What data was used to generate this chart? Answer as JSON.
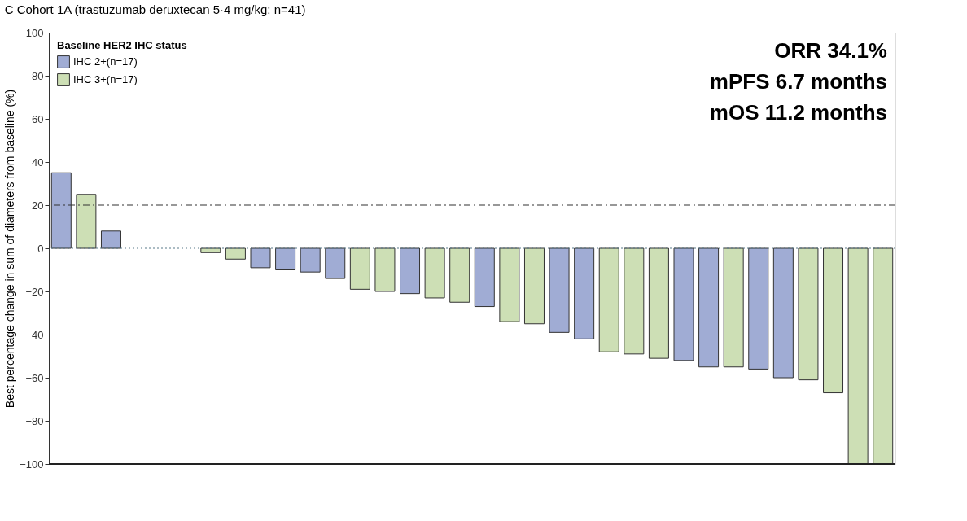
{
  "chart_data": {
    "type": "bar",
    "title": "C  Cohort 1A (trastuzumab deruxtecan 5·4 mg/kg; n=41)",
    "ylabel": "Best percentage change in sum of diameters from baseline (%)",
    "legend_title": "Baseline HER2 IHC status",
    "categories": [
      null,
      null,
      null,
      null,
      null,
      null,
      null,
      null,
      null,
      null,
      null,
      null,
      null,
      null,
      null,
      null,
      null,
      null,
      null,
      null,
      null,
      null,
      null,
      null,
      null,
      null,
      null,
      null,
      null,
      null,
      null,
      null,
      null,
      null
    ],
    "series": [
      {
        "name": "IHC 2+(n=17)",
        "color": "#a0acd4",
        "values": [
          35,
          null,
          8,
          null,
          null,
          null,
          null,
          null,
          -9,
          -10,
          -11,
          -14,
          null,
          null,
          -21,
          null,
          null,
          -27,
          null,
          null,
          -39,
          -42,
          null,
          null,
          null,
          -52,
          -55,
          null,
          -56,
          -60,
          null,
          null,
          null,
          null
        ]
      },
      {
        "name": "IHC 3+(n=17)",
        "color": "#cddfb5",
        "values": [
          null,
          25,
          null,
          null,
          null,
          null,
          -2,
          -5,
          null,
          null,
          null,
          null,
          -19,
          -20,
          null,
          -23,
          -25,
          null,
          -34,
          -35,
          null,
          null,
          -48,
          -49,
          -51,
          null,
          null,
          -55,
          null,
          null,
          -61,
          -67,
          -100,
          -100
        ]
      }
    ],
    "ylim": [
      -100,
      100
    ],
    "yticks": [
      -100,
      -80,
      -60,
      -40,
      -20,
      0,
      20,
      40,
      60,
      80,
      100
    ],
    "ref_lines": [
      {
        "axis": "y",
        "value": 20,
        "label": null,
        "color": "#333333",
        "line_style": "dashed"
      },
      {
        "axis": "y",
        "value": -30,
        "label": null,
        "color": "#333333",
        "line_style": "dashed"
      },
      {
        "axis": "y",
        "value": 0,
        "label": null,
        "color": "#5a7a8a",
        "line_style": "dotted"
      }
    ],
    "annotations": [
      "ORR 34.1%",
      "mPFS 6.7 months",
      "mOS 11.2 months"
    ],
    "legend": "top left",
    "grid": false,
    "tick_labels": "y"
  }
}
